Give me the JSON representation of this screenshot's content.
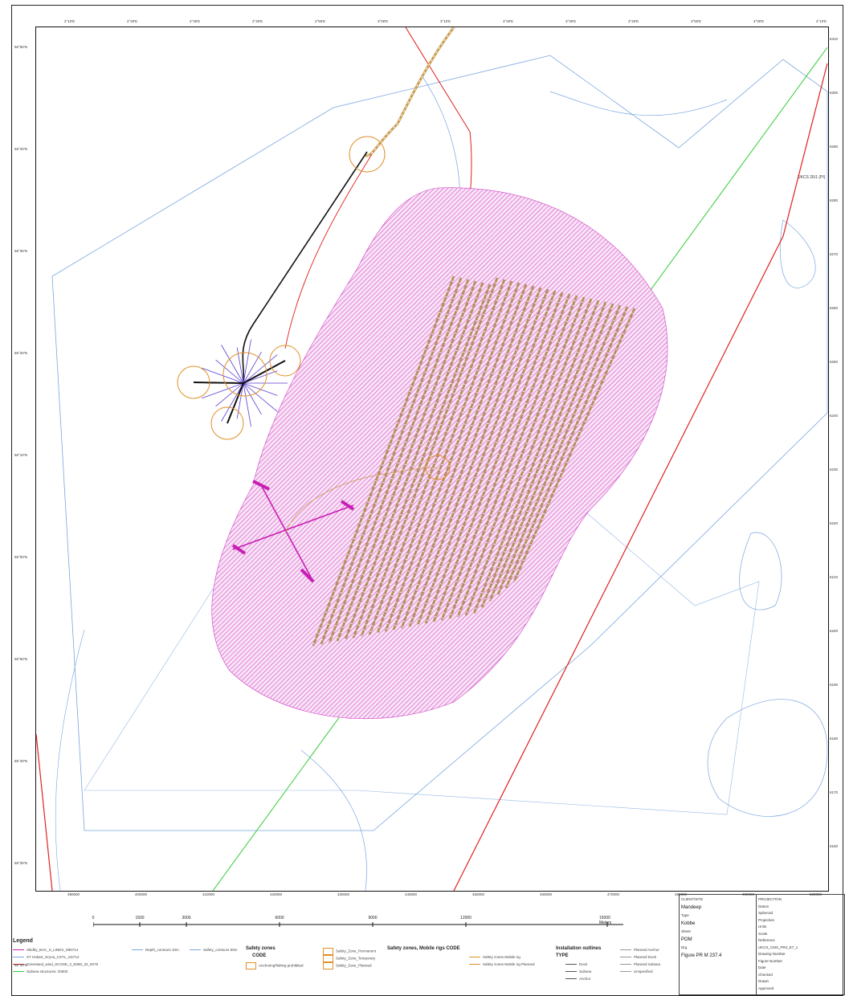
{
  "map": {
    "top_ticks": [
      "2°10'E",
      "2°20'E",
      "2°30'E",
      "2°40'E",
      "2°50'E",
      "3°00'E",
      "3°10'E",
      "3°20'E",
      "3°30'E",
      "3°40'E",
      "3°50'E",
      "4°00'E",
      "4°10'E"
    ],
    "left_ticks": [
      "56°50'N",
      "56°40'N",
      "56°30'N",
      "56°20'N",
      "56°10'N",
      "56°00'N",
      "55°50'N",
      "55°40'N",
      "55°30'N",
      "55°20'N"
    ],
    "right_ticks": [
      "6310",
      "6300",
      "6290",
      "6280",
      "6270",
      "6260",
      "6250",
      "6240",
      "6230",
      "6220",
      "6210",
      "6200",
      "6190",
      "6180",
      "6170",
      "6160"
    ],
    "bottom_ticks": [
      "390000",
      "400000",
      "410000",
      "420000",
      "430000",
      "440000",
      "450000",
      "460000",
      "470000",
      "480000",
      "490000",
      "500000"
    ],
    "annotation_label": "UKCS 26/1 (PI)"
  },
  "scalebar": {
    "labels": [
      "0",
      "1500",
      "3000",
      "6000",
      "9000",
      "12000",
      "15000 Meters"
    ]
  },
  "legend": {
    "title": "Legend",
    "col1": [
      "Skidby_BAC_S_LINES_S85714",
      "ST Hobart_Gryna_CSTL_SS714",
      "Greenland_wind_SCOSE_2_E080_32_0075",
      "Subsea structures: 20000"
    ],
    "col2a": [
      "Depth_contours 10m"
    ],
    "col2b": [
      "Safety_contours 50m"
    ],
    "safety_heading": "Safety zones",
    "safety_code": "CODE",
    "safety_item": "Anchoring/fishing prohibited",
    "col3": [
      "Safety_Zone_Permanent",
      "Safety_Zone_Temporary",
      "Safety_Zone_Planned"
    ],
    "mobile_heading": "Safety zones, Mobile rigs CODE",
    "col4": [
      "Safety zones Mobile rig",
      "Safety zones Mobile rig Planned"
    ],
    "install_heading": "Installation outlines",
    "install_type": "TYPE",
    "col5": [
      "Dock",
      "Subsea",
      "Anchor"
    ],
    "col6": [
      "Planned Anchor",
      "Planned Dock",
      "Planned Subsea",
      "Unspecified"
    ]
  },
  "titleblock": {
    "left": [
      "CLIENT/SITE",
      "Mandeep",
      "Type",
      "Kobbe",
      "Sheet",
      "POM",
      "Drg",
      "Figure PR M 237.4"
    ],
    "right": [
      "PROJECTION",
      "Datum",
      "Spheroid",
      "Projection",
      "Units",
      "Scale",
      "Reference",
      "UKCS_CMS_PR4_E7_1",
      "Drawing Number",
      "Figure Number",
      "Date",
      "Checked",
      "Drawn",
      "Approved"
    ]
  },
  "colors": {
    "pink_zone": "#d23ec8",
    "brown_lines": "#b89060",
    "depth_blue": "#7aa6e0",
    "red_line": "#e02020",
    "green_line": "#33cc33",
    "orange_circle": "#e0902a",
    "purple_rig": "#5a3ed2",
    "magenta_rig": "#c81eb4"
  }
}
